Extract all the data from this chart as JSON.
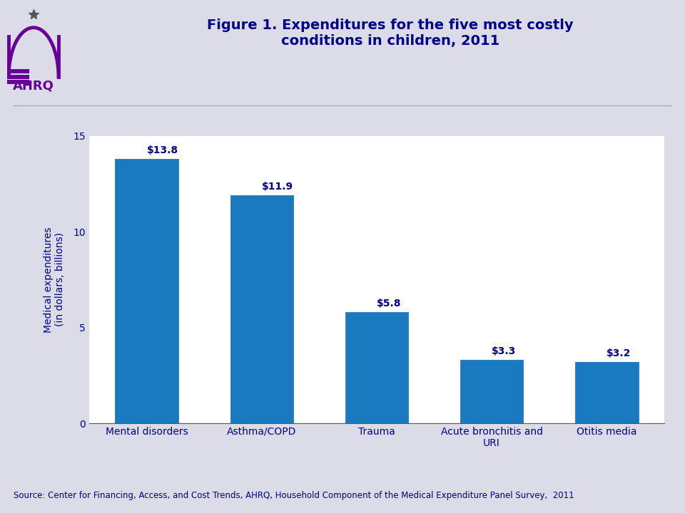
{
  "title": "Figure 1. Expenditures for the five most costly\nconditions in children, 2011",
  "categories": [
    "Mental disorders",
    "Asthma/COPD",
    "Trauma",
    "Acute bronchitis and\nURI",
    "Otitis media"
  ],
  "values": [
    13.8,
    11.9,
    5.8,
    3.3,
    3.2
  ],
  "labels": [
    "$13.8",
    "$11.9",
    "$5.8",
    "$3.3",
    "$3.2"
  ],
  "bar_color": "#1a7abf",
  "bar_edge_color": "#1a6aaf",
  "ylabel": "Medical expenditures\n(in dollars, billions)",
  "ylim": [
    0,
    15
  ],
  "yticks": [
    0,
    5,
    10,
    15
  ],
  "source_text": "Source: Center for Financing, Access, and Cost Trends, AHRQ, Household Component of the Medical Expenditure Panel Survey,  2011",
  "title_color": "#00008B",
  "label_color": "#00008B",
  "axis_label_color": "#00008B",
  "tick_label_color": "#00008B",
  "source_color": "#00008B",
  "background_color": "#dcdce8",
  "plot_background_color": "#ffffff",
  "header_background": "#dcdce8",
  "title_fontsize": 14,
  "label_fontsize": 10,
  "tick_fontsize": 10,
  "ylabel_fontsize": 10,
  "source_fontsize": 8.5,
  "separator_color": "#aaaaaa",
  "spine_color": "#555555"
}
